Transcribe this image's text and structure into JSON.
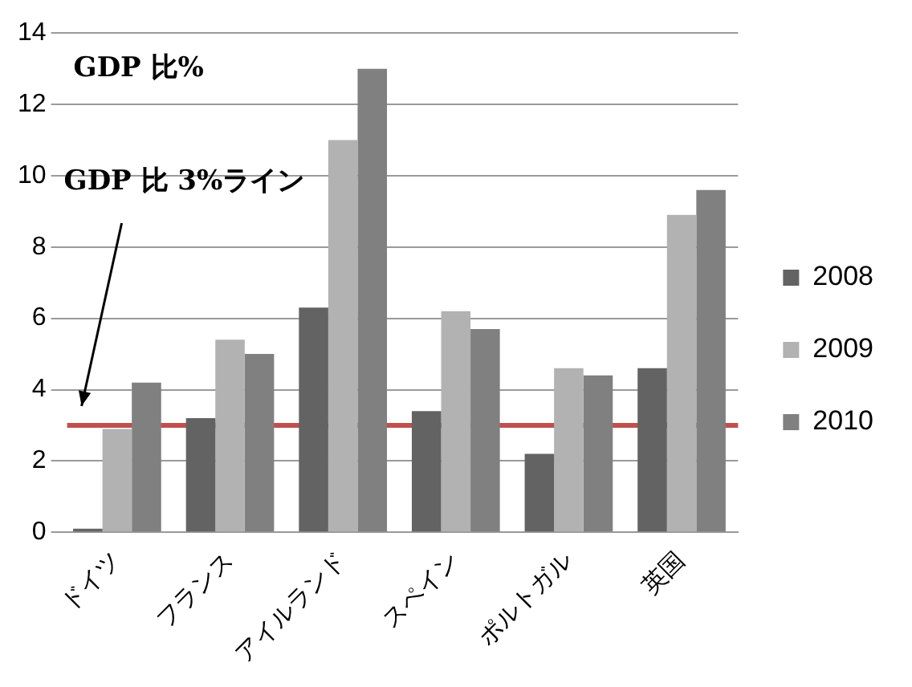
{
  "chart_data": {
    "type": "bar",
    "annotations": [
      "GDP 比%",
      "GDP 比 3%ライン"
    ],
    "categories": [
      "ドイツ",
      "フランス",
      "アイルランド",
      "スペイン",
      "ポルトガル",
      "英国"
    ],
    "series": [
      {
        "name": "2008",
        "color": "#636363",
        "values": [
          0.1,
          3.2,
          6.3,
          3.4,
          2.2,
          4.6
        ]
      },
      {
        "name": "2009",
        "color": "#b2b2b2",
        "values": [
          2.9,
          5.4,
          11.0,
          6.2,
          4.6,
          8.9
        ]
      },
      {
        "name": "2010",
        "color": "#808080",
        "values": [
          4.2,
          5.0,
          13.0,
          5.7,
          4.4,
          9.6
        ]
      }
    ],
    "ylim": [
      0,
      14
    ],
    "yticks": [
      0,
      2,
      4,
      6,
      8,
      10,
      12,
      14
    ],
    "grid": "y",
    "legend": "right",
    "ref_lines": [
      {
        "axis": "y",
        "value": 3,
        "color": "#c0504d"
      }
    ]
  }
}
